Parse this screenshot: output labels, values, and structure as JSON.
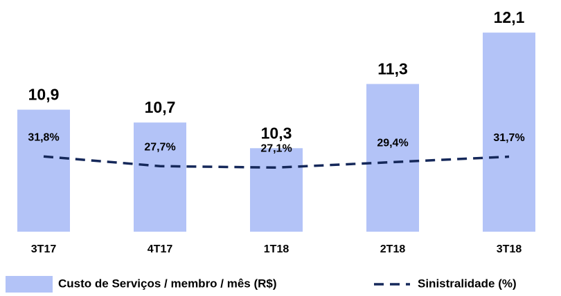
{
  "chart_data": {
    "type": "bar",
    "categories": [
      "3T17",
      "4T17",
      "1T18",
      "2T18",
      "3T18"
    ],
    "series": [
      {
        "name": "Custo de Serviços / membro / mês (R$)",
        "type": "bar",
        "color": "#b3c3f7",
        "values": [
          10.9,
          10.7,
          10.3,
          11.3,
          12.1
        ],
        "value_labels": [
          "10,9",
          "10,7",
          "10,3",
          "11,3",
          "12,1"
        ]
      },
      {
        "name": "Sinistralidade (%)",
        "type": "line",
        "axis": "y2",
        "color": "#15285a",
        "values": [
          31.8,
          27.7,
          27.1,
          29.4,
          31.7
        ],
        "value_labels": [
          "31,8%",
          "27,7%",
          "27,1%",
          "29,4%",
          "31,7%"
        ]
      }
    ],
    "ylim": [
      9,
      12.5
    ],
    "y2lim": [
      0,
      95
    ],
    "legend": "bottom"
  }
}
